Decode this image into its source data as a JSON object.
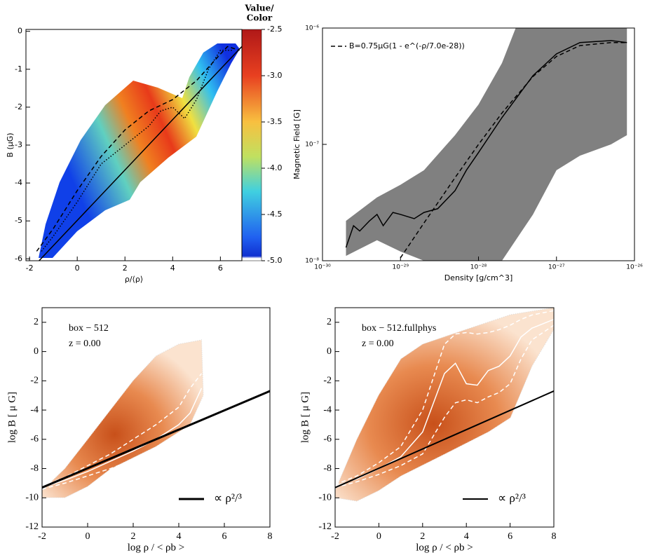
{
  "chart_data": [
    {
      "type": "line",
      "xlabel": "ρ/⟨ρ⟩",
      "ylabel": "B (μG)",
      "xlim": [
        -2.15,
        6.9
      ],
      "ylim": [
        -6.05,
        0.05
      ],
      "xticks": [
        -2,
        0,
        2,
        4,
        6
      ],
      "yticks": [
        0,
        -1,
        -2,
        -3,
        -4,
        -5,
        -6
      ],
      "colorbar_title": [
        "Value/",
        "Color"
      ],
      "clim": [
        -5.0,
        -2.5
      ],
      "cticks": [
        {
          "value": -2.5,
          "label": "-2.5"
        },
        {
          "value": -3.0,
          "label": "-3.0"
        },
        {
          "value": -3.5,
          "label": "-3.5"
        },
        {
          "value": -4.0,
          "label": "-4.0"
        },
        {
          "value": -4.5,
          "label": "-4.5"
        },
        {
          "value": -5.0,
          "label": "-5.0"
        }
      ],
      "series": [
        {
          "style": "solid",
          "color": "#000000",
          "x": [
            -1.6,
            6.9
          ],
          "values": [
            -6.05,
            -0.4
          ]
        },
        {
          "style": "dashed",
          "color": "#000000",
          "x": [
            -1.7,
            -1,
            0,
            1,
            2,
            3,
            4,
            5,
            6,
            6.3,
            6.8
          ],
          "values": [
            -5.8,
            -5.2,
            -4.2,
            -3.3,
            -2.6,
            -2.1,
            -1.8,
            -1.3,
            -0.6,
            -0.4,
            -0.5
          ]
        },
        {
          "style": "dotted",
          "color": "#000000",
          "x": [
            -1.5,
            -1,
            0,
            1,
            2,
            3,
            3.5,
            4,
            4.5,
            5,
            5.5,
            6,
            6.5
          ],
          "values": [
            -5.8,
            -5.4,
            -4.5,
            -3.5,
            -3.0,
            -2.5,
            -2.1,
            -2.0,
            -2.3,
            -1.8,
            -1.0,
            -0.5,
            -0.5
          ]
        }
      ]
    },
    {
      "type": "line",
      "xlog": true,
      "ylog": true,
      "xlabel": "Density [g/cm^3]",
      "ylabel": "Magnetic Field [G]",
      "xlim": [
        1e-30,
        1e-26
      ],
      "ylim": [
        1e-08,
        1e-06
      ],
      "xticks": [
        {
          "value": 1e-30,
          "label": "10⁻³⁰"
        },
        {
          "value": 1e-29,
          "label": "10⁻²⁹"
        },
        {
          "value": 1e-28,
          "label": "10⁻²⁸"
        },
        {
          "value": 1e-27,
          "label": "10⁻²⁷"
        },
        {
          "value": 1e-26,
          "label": "10⁻²⁶"
        }
      ],
      "yticks": [
        {
          "value": 1e-08,
          "label": "10⁻⁸"
        },
        {
          "value": 1e-07,
          "label": "10⁻⁷"
        },
        {
          "value": 1e-06,
          "label": "10⁻⁶"
        }
      ],
      "legend": "upper left",
      "series": [
        {
          "kind": "band",
          "color": "#808080",
          "x": [
            2e-30,
            5e-30,
            1e-29,
            2e-29,
            5e-29,
            1e-28,
            2e-28,
            3e-28,
            5e-28,
            1e-27,
            2e-27,
            5e-27,
            8e-27
          ],
          "values": [
            2.2e-08,
            3.5e-08,
            4.5e-08,
            6e-08,
            1.2e-07,
            2.2e-07,
            5e-07,
            1e-06,
            1e-06,
            1e-06,
            1e-06,
            1e-06,
            1e-06
          ],
          "lower": [
            1.1e-08,
            1.5e-08,
            1.2e-08,
            1e-08,
            1e-08,
            1e-08,
            1e-08,
            1.5e-08,
            2.5e-08,
            6e-08,
            8e-08,
            1e-07,
            1.2e-07
          ]
        },
        {
          "style": "solid",
          "color": "#000000",
          "x": [
            2e-30,
            2.5e-30,
            3e-30,
            4e-30,
            5e-30,
            6e-30,
            8e-30,
            1e-29,
            1.5e-29,
            2e-29,
            3e-29,
            5e-29,
            7e-29,
            1e-28,
            2e-28,
            5e-28,
            1e-27,
            2e-27,
            5e-27,
            8e-27
          ],
          "values": [
            1.3e-08,
            2e-08,
            1.8e-08,
            2.2e-08,
            2.5e-08,
            2e-08,
            2.6e-08,
            2.5e-08,
            2.3e-08,
            2.6e-08,
            2.8e-08,
            4e-08,
            6e-08,
            8.5e-08,
            1.7e-07,
            3.9e-07,
            6e-07,
            7.5e-07,
            7.8e-07,
            7.5e-07
          ]
        },
        {
          "name": "B=0.75μG(1 - e^(-ρ/7.0e-28))",
          "style": "dashed",
          "color": "#000000",
          "x": [
            1e-29,
            2e-29,
            5e-29,
            1e-28,
            2e-28,
            5e-28,
            1e-27,
            2e-27,
            5e-27,
            8e-27
          ],
          "values": [
            1.06e-08,
            2.11e-08,
            5.17e-08,
            9.98e-08,
            1.86e-07,
            3.83e-07,
            5.7e-07,
            7.07e-07,
            7.5e-07,
            7.5e-07
          ]
        }
      ]
    },
    {
      "type": "line",
      "xlabel": "log ρ / < ρb >",
      "ylabel": "log B [ μ G]",
      "xlim": [
        -2,
        8
      ],
      "ylim": [
        -12,
        3
      ],
      "xticks": [
        -2,
        0,
        2,
        4,
        6,
        8
      ],
      "yticks": [
        2,
        0,
        -2,
        -4,
        -6,
        -8,
        -10,
        -12
      ],
      "annotations": [
        "box − 512",
        "z = 0.00"
      ],
      "legend": "lower right",
      "series": [
        {
          "style": "solid",
          "color": "#ffffff",
          "x": [
            -2,
            -1,
            0,
            1,
            2,
            3,
            4,
            4.5,
            5
          ],
          "values": [
            -9.3,
            -8.8,
            -8.2,
            -7.5,
            -6.8,
            -6,
            -5,
            -4.2,
            -2.5
          ]
        },
        {
          "style": "dashed",
          "color": "#ffffff",
          "x": [
            -2,
            -1,
            0,
            1,
            2,
            3,
            4,
            4.5,
            5
          ],
          "values": [
            -9.2,
            -8.6,
            -7.8,
            -7,
            -6,
            -5,
            -3.8,
            -2.5,
            -1.5
          ]
        },
        {
          "style": "dashed",
          "color": "#ffffff",
          "x": [
            -2,
            -1,
            0,
            1,
            2,
            3,
            4,
            4.5,
            5
          ],
          "values": [
            -9.4,
            -9,
            -8.5,
            -8,
            -7.4,
            -6.8,
            -6,
            -5.3,
            -3.8
          ]
        },
        {
          "name": "∝ ρ²/³",
          "style": "solid",
          "color": "#000000",
          "width": 3,
          "x": [
            -2,
            8
          ],
          "values": [
            -9.3,
            -2.7
          ]
        }
      ]
    },
    {
      "type": "line",
      "xlabel": "log ρ / < ρb >",
      "ylabel": "log B [ μ G]",
      "xlim": [
        -2,
        8
      ],
      "ylim": [
        -12,
        3
      ],
      "xticks": [
        -2,
        0,
        2,
        4,
        6,
        8
      ],
      "yticks": [
        2,
        0,
        -2,
        -4,
        -6,
        -8,
        -10,
        -12
      ],
      "annotations": [
        "box − 512.fullphys",
        "z = 0.00"
      ],
      "legend": "lower right",
      "series": [
        {
          "style": "solid",
          "color": "#ffffff",
          "x": [
            -2,
            -1,
            0,
            1,
            2,
            3,
            3.5,
            4,
            4.5,
            5,
            5.5,
            6,
            6.5,
            7,
            8
          ],
          "values": [
            -9.2,
            -8.7,
            -8,
            -7.2,
            -5.5,
            -1.5,
            -0.8,
            -2.2,
            -2.3,
            -1.3,
            -1,
            -0.3,
            1,
            1.6,
            2.2
          ]
        },
        {
          "style": "dashed",
          "color": "#ffffff",
          "x": [
            -2,
            -1,
            0,
            1,
            2,
            3,
            3.5,
            4,
            4.5,
            5,
            5.5,
            6,
            6.5,
            7,
            8
          ],
          "values": [
            -9.1,
            -8.5,
            -7.6,
            -6.5,
            -4,
            0.5,
            1.2,
            1.3,
            1.2,
            1.3,
            1.5,
            1.8,
            2.2,
            2.5,
            2.8
          ]
        },
        {
          "style": "dashed",
          "color": "#ffffff",
          "x": [
            -2,
            -1,
            0,
            1,
            2,
            3,
            3.5,
            4,
            4.5,
            5,
            5.5,
            6,
            6.5,
            7,
            8
          ],
          "values": [
            -9.3,
            -8.9,
            -8.4,
            -7.8,
            -7,
            -4.5,
            -3.5,
            -3.3,
            -3.5,
            -3.1,
            -2.8,
            -2.2,
            -0.5,
            0.8,
            1.8
          ]
        },
        {
          "name": "∝ ρ²/³",
          "style": "solid",
          "color": "#000000",
          "width": 2,
          "x": [
            -2,
            8
          ],
          "values": [
            -9.3,
            -2.7
          ]
        }
      ]
    }
  ]
}
